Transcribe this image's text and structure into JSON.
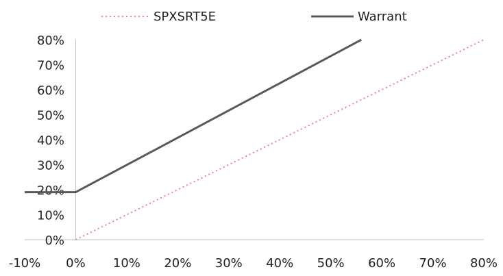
{
  "chart_data": {
    "type": "line",
    "x_ticks": [
      "-10%",
      "0%",
      "10%",
      "20%",
      "30%",
      "40%",
      "50%",
      "60%",
      "70%",
      "80%"
    ],
    "y_ticks": [
      "0%",
      "10%",
      "20%",
      "30%",
      "40%",
      "50%",
      "60%",
      "70%",
      "80%"
    ],
    "xlim": [
      -10,
      80
    ],
    "ylim": [
      0,
      80
    ],
    "grid": false,
    "legend_position": "top",
    "series": [
      {
        "name": "SPXSRT5E",
        "color": "#f08080",
        "style": "dotted",
        "points": [
          [
            0,
            0
          ],
          [
            80,
            80
          ]
        ]
      },
      {
        "name": "Warrant",
        "color": "#595959",
        "style": "solid",
        "points": [
          [
            -10,
            19
          ],
          [
            0,
            19
          ],
          [
            56,
            80
          ]
        ]
      }
    ]
  }
}
